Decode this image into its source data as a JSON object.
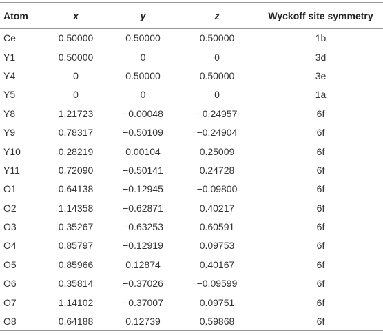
{
  "table": {
    "header": [
      "Atom",
      "x",
      "y",
      "z",
      "Wyckoff site symmetry"
    ],
    "rows": [
      [
        "Ce",
        "0.50000",
        "0.50000",
        "0.50000",
        "1b"
      ],
      [
        "Y1",
        "0.50000",
        "0",
        "0",
        "3d"
      ],
      [
        "Y4",
        "0",
        "0.50000",
        "0.50000",
        "3e"
      ],
      [
        "Y5",
        "0",
        "0",
        "0",
        "1a"
      ],
      [
        "Y8",
        "1.21723",
        "−0.00048",
        "−0.24957",
        "6f"
      ],
      [
        "Y9",
        "0.78317",
        "−0.50109",
        "−0.24904",
        "6f"
      ],
      [
        "Y10",
        "0.28219",
        "0.00104",
        "0.25009",
        "6f"
      ],
      [
        "Y11",
        "0.72090",
        "−0.50141",
        "0.24728",
        "6f"
      ],
      [
        "O1",
        "0.64138",
        "−0.12945",
        "−0.09800",
        "6f"
      ],
      [
        "O2",
        "1.14358",
        "−0.62871",
        "0.40217",
        "6f"
      ],
      [
        "O3",
        "0.35267",
        "−0.63253",
        "0.60591",
        "6f"
      ],
      [
        "O4",
        "0.85797",
        "−0.12919",
        "0.09753",
        "6f"
      ],
      [
        "O5",
        "0.85966",
        "0.12874",
        "0.40167",
        "6f"
      ],
      [
        "O6",
        "0.35814",
        "−0.37026",
        "−0.09599",
        "6f"
      ],
      [
        "O7",
        "1.14102",
        "−0.37007",
        "0.09751",
        "6f"
      ],
      [
        "O8",
        "0.64188",
        "0.12739",
        "0.59868",
        "6f"
      ]
    ]
  }
}
